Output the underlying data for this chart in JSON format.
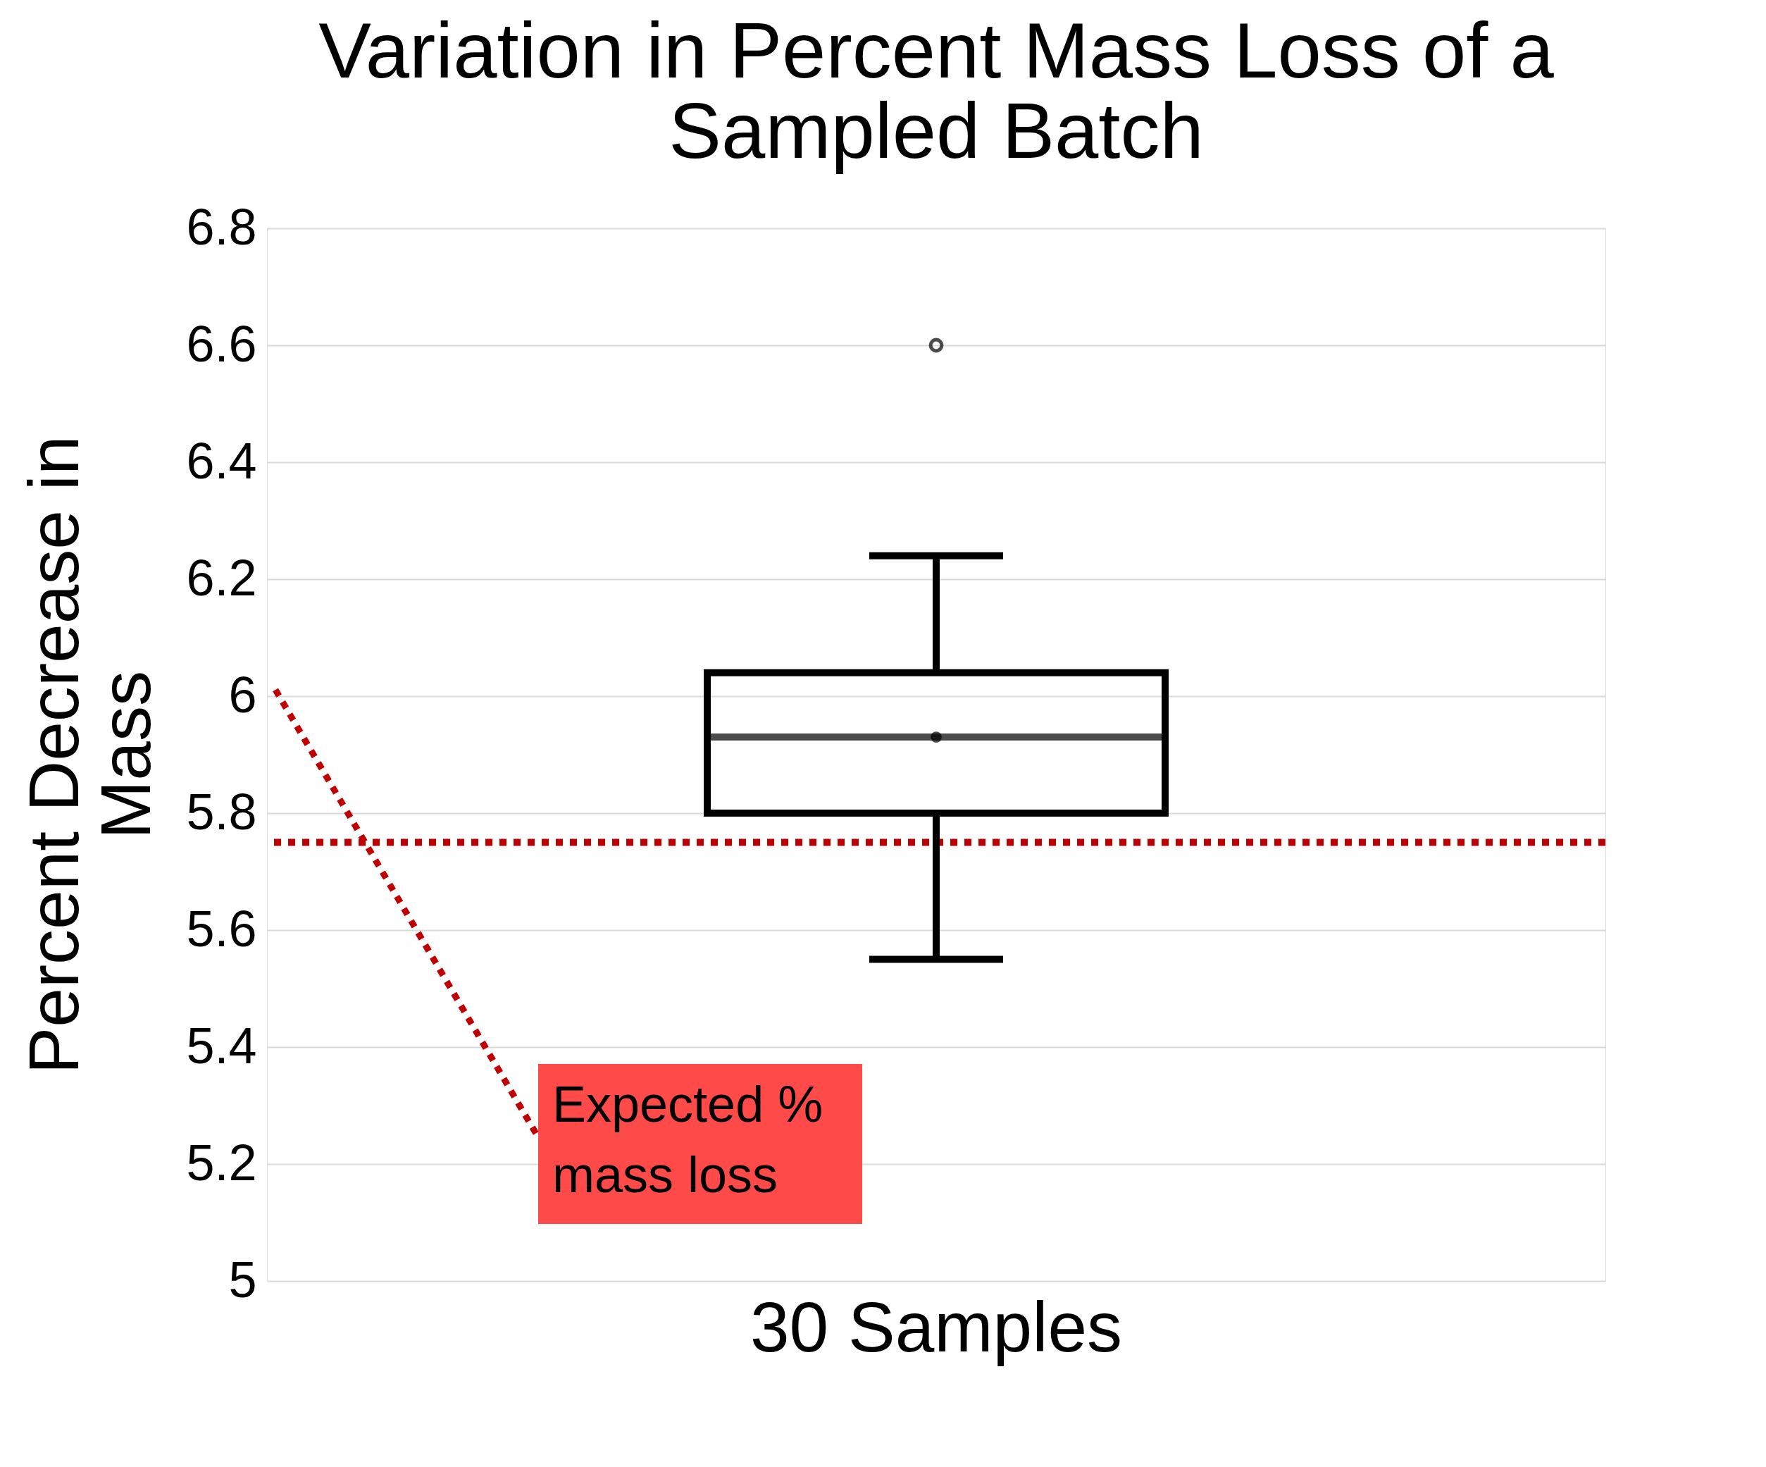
{
  "chart_data": {
    "type": "box",
    "title": "Variation in Percent Mass Loss of a Sampled Batch",
    "ylabel": "Percent Decrease in Mass",
    "categories": [
      "30 Samples"
    ],
    "boxes": [
      {
        "low": 5.55,
        "q1": 5.8,
        "median": 5.93,
        "q3": 6.04,
        "high": 6.24,
        "mean": 5.93,
        "outliers": [
          6.6
        ]
      }
    ],
    "ylim": [
      5,
      6.8
    ],
    "yticks": [
      5,
      5.2,
      5.4,
      5.6,
      5.8,
      6,
      6.2,
      6.4,
      6.6,
      6.8
    ],
    "grid": "y",
    "ref_lines": [
      {
        "axis": "y",
        "value": 5.75,
        "color": "#c00000",
        "line_style": "dotted"
      }
    ],
    "annotations": [
      "Expected  % mass loss"
    ]
  }
}
